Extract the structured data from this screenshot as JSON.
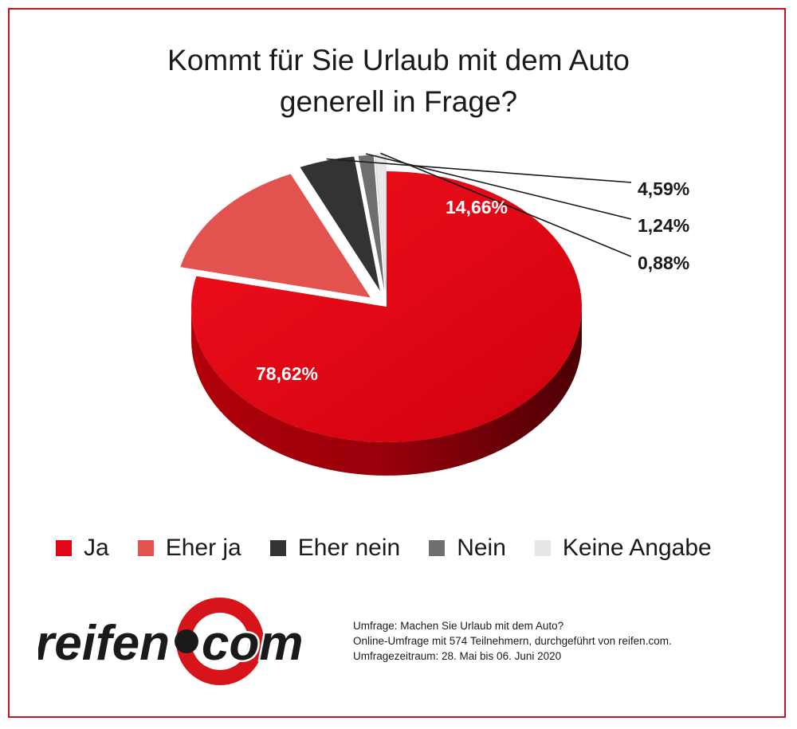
{
  "title": {
    "line1": "Kommt für Sie Urlaub mit dem Auto",
    "line2": "generell in Frage?"
  },
  "chart_data": {
    "type": "pie",
    "title": "Kommt für Sie Urlaub mit dem Auto generell in Frage?",
    "categories": [
      "Ja",
      "Eher ja",
      "Eher nein",
      "Nein",
      "Keine Angabe"
    ],
    "values": [
      78.62,
      14.66,
      4.59,
      1.24,
      0.88
    ],
    "labels": [
      "78,62%",
      "14,66%",
      "4,59%",
      "1,24%",
      "0,88%"
    ],
    "colors": [
      "#e30613",
      "#e2524f",
      "#333333",
      "#6e6e6e",
      "#e8e8e8"
    ],
    "legend_position": "bottom",
    "style": "3d-exploded"
  },
  "legend": [
    {
      "label": "Ja",
      "color": "#e30613"
    },
    {
      "label": "Eher ja",
      "color": "#e2524f"
    },
    {
      "label": "Eher nein",
      "color": "#333333"
    },
    {
      "label": "Nein",
      "color": "#6e6e6e"
    },
    {
      "label": "Keine Angabe",
      "color": "#e8e8e8"
    }
  ],
  "logo": {
    "left_text": "reifen",
    "right_text": "com",
    "colors": {
      "ring": "#d7141a",
      "text": "#1a1a1a"
    }
  },
  "footnote": {
    "line1": "Umfrage: Machen Sie Urlaub mit dem Auto?",
    "line2": "Online-Umfrage mit 574 Teilnehmern, durchgeführt von reifen.com.",
    "line3": "Umfragezeitraum: 28. Mai bis 06. Juni 2020"
  },
  "frame_color": "#c4161c"
}
